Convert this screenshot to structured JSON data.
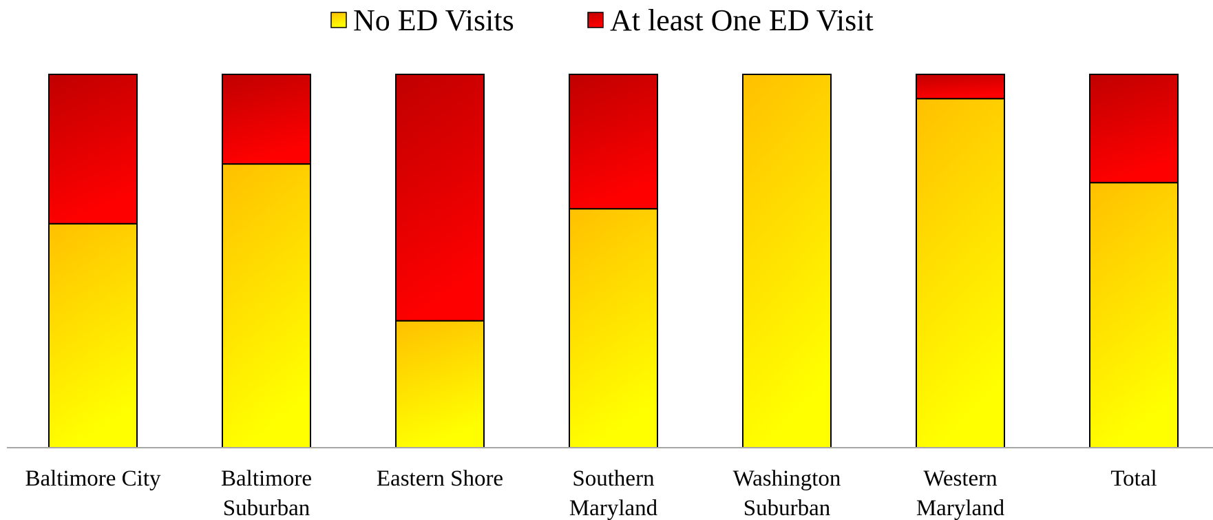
{
  "chart_data": {
    "type": "bar",
    "stacked": true,
    "normalized_percent": true,
    "categories": [
      [
        "Baltimore City"
      ],
      [
        "Baltimore",
        "Suburban"
      ],
      [
        "Eastern Shore"
      ],
      [
        "Southern",
        "Maryland"
      ],
      [
        "Washington",
        "Suburban"
      ],
      [
        "Western",
        "Maryland"
      ],
      [
        "Total"
      ]
    ],
    "series": [
      {
        "name": "No ED Visits",
        "values": [
          60,
          76,
          34,
          64,
          100,
          93.5,
          71
        ]
      },
      {
        "name": "At least One ED Visit",
        "values": [
          40,
          24,
          66,
          36,
          0,
          6.5,
          29
        ]
      }
    ],
    "ylim": [
      0,
      100
    ],
    "grid": false,
    "legend_position": "top-center",
    "colors": {
      "no_ed_top": "#FFC000",
      "no_ed_bottom": "#FFFF00",
      "ed_top": "#C00000",
      "ed_bottom": "#FF0000",
      "outline": "#000000",
      "axis": "#A6A6A6"
    }
  }
}
